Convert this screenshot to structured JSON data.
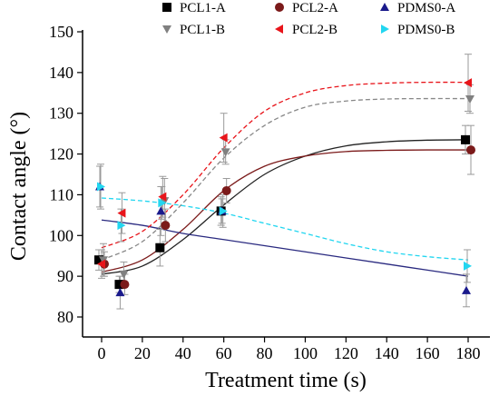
{
  "chart_data": {
    "type": "scatter",
    "xlabel": "Treatment time (s)",
    "ylabel": "Contact angle (°)",
    "xlim": [
      -5,
      187
    ],
    "ylim": [
      75,
      150
    ],
    "xticks": [
      0,
      20,
      40,
      60,
      80,
      100,
      120,
      140,
      160,
      180
    ],
    "yticks": [
      80,
      90,
      100,
      110,
      120,
      130,
      140,
      150
    ],
    "grid": false,
    "legend_position": "top",
    "x": [
      0,
      10,
      30,
      60,
      180
    ],
    "series": [
      {
        "name": "PCL1-A",
        "marker": "square",
        "color": "#000000",
        "values": [
          94,
          88,
          97,
          106,
          123.5
        ],
        "errors": [
          2.5,
          2,
          4.5,
          3.5,
          3.5
        ],
        "fit": {
          "style": "solid",
          "color": "#222222",
          "x": [
            0,
            20,
            40,
            60,
            80,
            100,
            120,
            140,
            160,
            180
          ],
          "y": [
            90.5,
            92.5,
            99,
            107.5,
            115,
            119.5,
            122,
            123,
            123.4,
            123.5
          ]
        }
      },
      {
        "name": "PCL2-A",
        "marker": "circle",
        "color": "#7b1a1a",
        "values": [
          93,
          88,
          102.5,
          111,
          121
        ],
        "errors": [
          3,
          2.5,
          4,
          3,
          6
        ],
        "fit": {
          "style": "solid",
          "color": "#7b1a1a",
          "x": [
            0,
            20,
            40,
            60,
            80,
            100,
            120,
            140,
            160,
            180
          ],
          "y": [
            91,
            94,
            101.5,
            111,
            117,
            119.5,
            120.6,
            120.9,
            121,
            121
          ]
        }
      },
      {
        "name": "PDMS0-A",
        "marker": "triangle-up",
        "color": "#1a1a8c",
        "values": [
          112,
          86,
          106,
          106,
          86.5
        ],
        "errors": [
          5,
          4,
          6,
          3,
          4
        ],
        "fit": {
          "style": "solid",
          "color": "#2a2a80",
          "x": [
            0,
            20,
            40,
            60,
            80,
            100,
            120,
            140,
            160,
            180
          ],
          "y": [
            103.8,
            102.5,
            100.5,
            99,
            97.5,
            96,
            94.5,
            93,
            91.5,
            90
          ]
        }
      },
      {
        "name": "PCL1-B",
        "marker": "triangle-down",
        "color": "#808080",
        "values": [
          94,
          90.5,
          108.5,
          120.5,
          133.5
        ],
        "errors": [
          4,
          3,
          5.5,
          3,
          3.5
        ],
        "fit": {
          "style": "dashed",
          "color": "#888888",
          "x": [
            0,
            20,
            40,
            60,
            80,
            100,
            120,
            140,
            160,
            180
          ],
          "y": [
            94,
            98.5,
            108,
            119,
            127,
            131.5,
            133,
            133.5,
            133.6,
            133.6
          ]
        }
      },
      {
        "name": "PCL2-B",
        "marker": "triangle-left",
        "color": "#e8141a",
        "values": [
          93,
          105.5,
          109.5,
          124,
          137.5
        ],
        "errors": [
          3.5,
          5,
          5,
          6,
          7
        ],
        "fit": {
          "style": "dashed",
          "color": "#e8141a",
          "x": [
            0,
            20,
            40,
            60,
            80,
            100,
            120,
            140,
            160,
            180
          ],
          "y": [
            97,
            101,
            110,
            121.5,
            130.5,
            135,
            136.8,
            137.4,
            137.6,
            137.6
          ]
        }
      },
      {
        "name": "PDMS0-B",
        "marker": "triangle-right",
        "color": "#22d6f0",
        "values": [
          112,
          102.5,
          108,
          106,
          92.5
        ],
        "errors": [
          5.5,
          4,
          4,
          4,
          4
        ],
        "fit": {
          "style": "dashed",
          "color": "#22d6f0",
          "x": [
            0,
            20,
            40,
            60,
            80,
            100,
            120,
            140,
            160,
            180
          ],
          "y": [
            109.2,
            108.5,
            107.3,
            105.5,
            103,
            100.5,
            98,
            96,
            94.8,
            94
          ]
        }
      }
    ]
  }
}
